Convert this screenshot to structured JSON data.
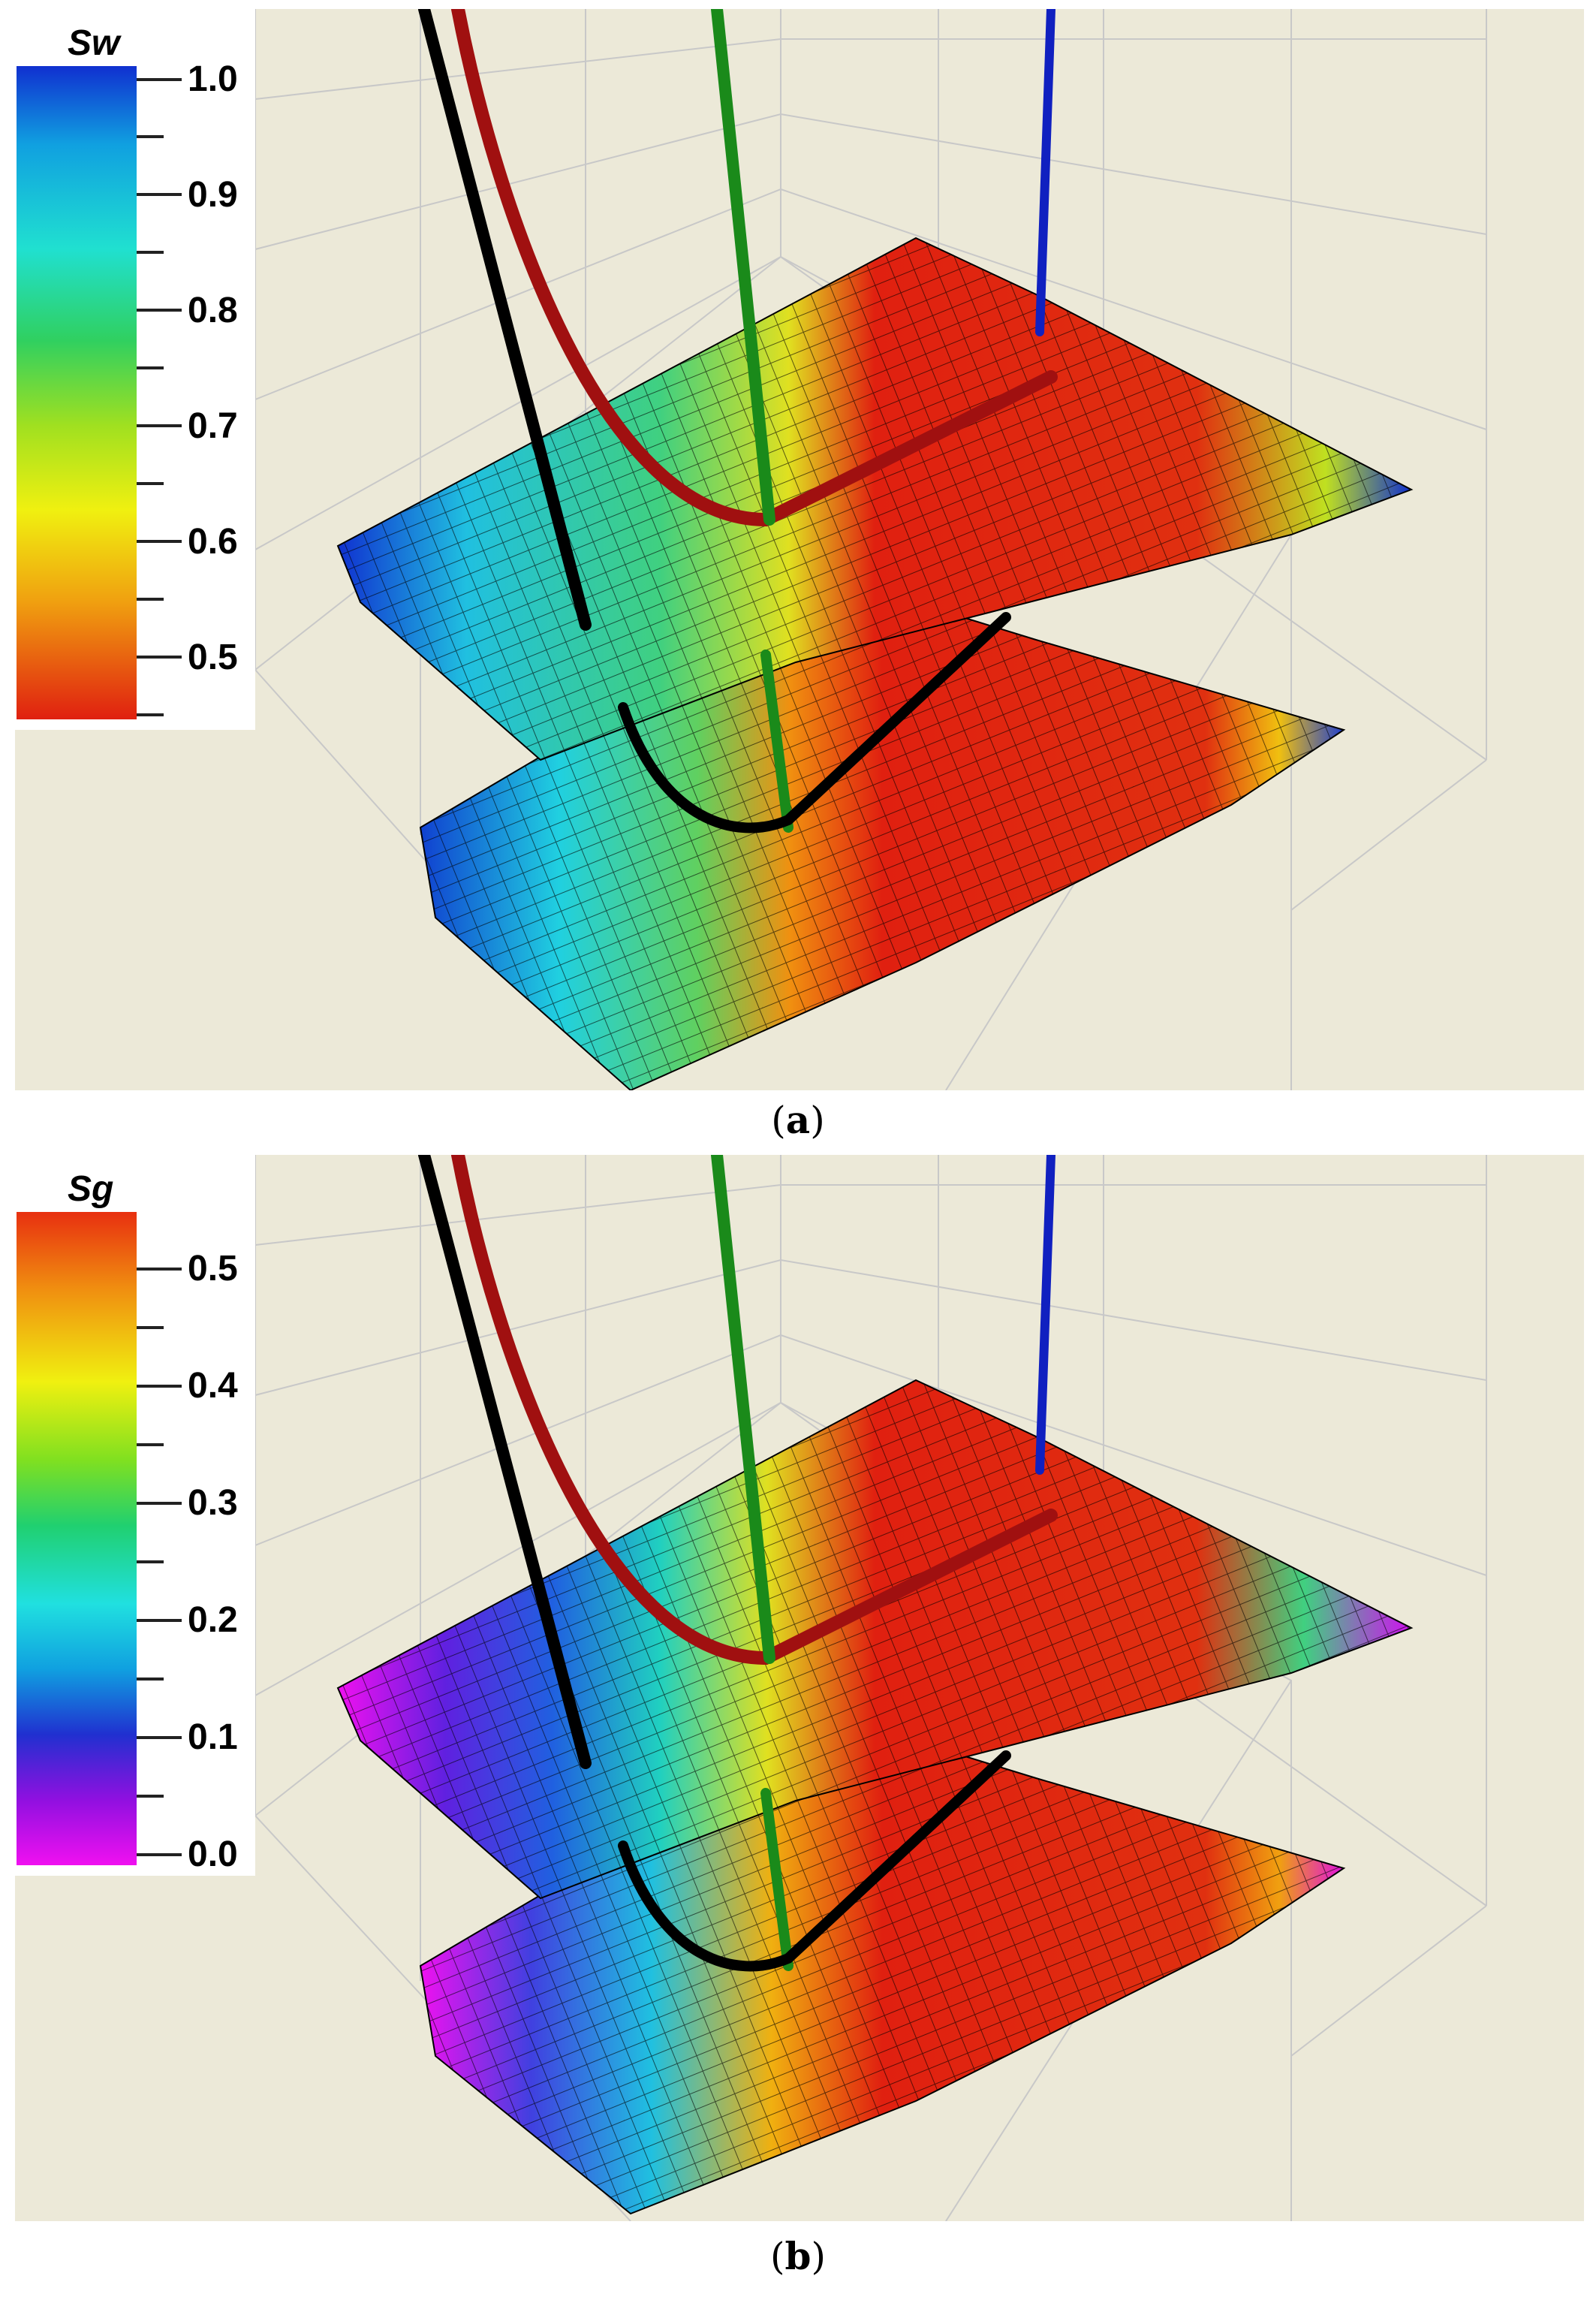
{
  "panels": [
    {
      "id": "a",
      "legend": {
        "title": "Sw",
        "ticks": [
          "1.0",
          "0.9",
          "0.8",
          "0.7",
          "0.6",
          "0.5"
        ],
        "colors": [
          "#1030d0",
          "#10a0e0",
          "#20e0d0",
          "#30d060",
          "#a0e020",
          "#f0f010",
          "#f0a010",
          "#e02010"
        ]
      },
      "caption": "a"
    },
    {
      "id": "b",
      "legend": {
        "title": "Sg",
        "ticks": [
          "0.5",
          "0.4",
          "0.3",
          "0.2",
          "0.1",
          "0.0"
        ],
        "colors": [
          "#e83010",
          "#f09010",
          "#f0f010",
          "#80e020",
          "#20d070",
          "#20e0e0",
          "#10a0e0",
          "#2030d0",
          "#9010e0",
          "#f010f0"
        ]
      },
      "caption": "b"
    }
  ]
}
